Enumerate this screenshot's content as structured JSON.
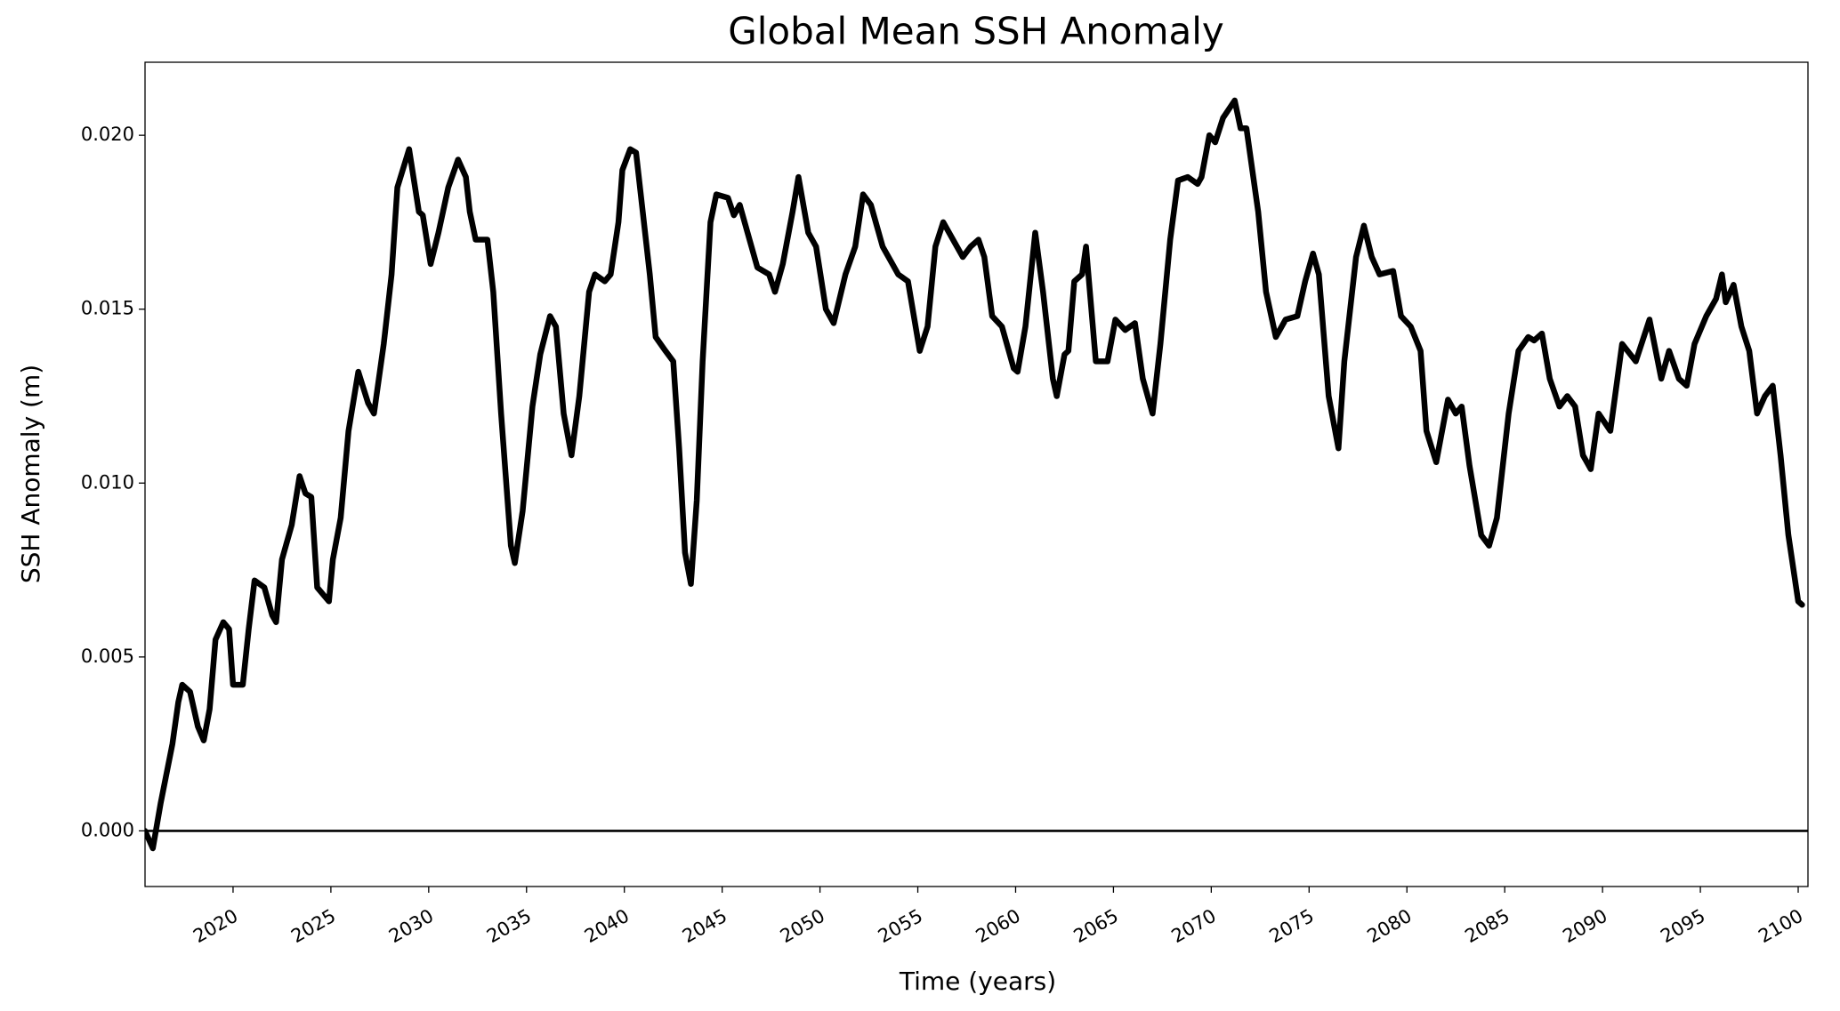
{
  "chart_data": {
    "type": "line",
    "title": "Global Mean SSH Anomaly",
    "xlabel": "Time (years)",
    "ylabel": "SSH Anomaly (m)",
    "hline": 0,
    "x": [
      2015.5,
      2015.9,
      2016.3,
      2016.9,
      2017.2,
      2017.4,
      2017.8,
      2018.2,
      2018.5,
      2018.8,
      2019.1,
      2019.5,
      2019.8,
      2020.0,
      2020.5,
      2020.8,
      2021.1,
      2021.6,
      2022.0,
      2022.2,
      2022.5,
      2023.0,
      2023.4,
      2023.7,
      2024.0,
      2024.3,
      2024.9,
      2025.1,
      2025.5,
      2025.9,
      2026.4,
      2026.9,
      2027.2,
      2027.7,
      2028.1,
      2028.4,
      2029.0,
      2029.5,
      2029.7,
      2030.1,
      2030.5,
      2031.0,
      2031.5,
      2031.9,
      2032.1,
      2032.4,
      2033.0,
      2033.3,
      2033.7,
      2034.2,
      2034.4,
      2034.8,
      2035.3,
      2035.7,
      2036.2,
      2036.5,
      2036.9,
      2037.3,
      2037.7,
      2038.2,
      2038.5,
      2039.0,
      2039.3,
      2039.7,
      2039.9,
      2040.3,
      2040.6,
      2040.9,
      2041.3,
      2041.6,
      2042.1,
      2042.5,
      2042.8,
      2043.1,
      2043.4,
      2043.7,
      2044.0,
      2044.4,
      2044.7,
      2045.3,
      2045.6,
      2045.9,
      2046.3,
      2046.8,
      2047.4,
      2047.7,
      2048.1,
      2048.6,
      2048.9,
      2049.4,
      2049.8,
      2050.3,
      2050.7,
      2051.3,
      2051.8,
      2052.2,
      2052.6,
      2053.2,
      2053.7,
      2054.0,
      2054.5,
      2055.1,
      2055.5,
      2055.9,
      2056.3,
      2056.8,
      2057.3,
      2057.7,
      2058.1,
      2058.4,
      2058.8,
      2059.3,
      2059.9,
      2060.1,
      2060.5,
      2061.0,
      2061.4,
      2061.9,
      2062.1,
      2062.5,
      2062.7,
      2063.0,
      2063.4,
      2063.6,
      2064.1,
      2064.7,
      2065.1,
      2065.6,
      2066.1,
      2066.5,
      2067.0,
      2067.4,
      2067.9,
      2068.3,
      2068.8,
      2069.3,
      2069.5,
      2069.9,
      2070.2,
      2070.6,
      2071.2,
      2071.5,
      2071.8,
      2072.1,
      2072.4,
      2072.8,
      2073.3,
      2073.8,
      2074.4,
      2074.8,
      2075.2,
      2075.5,
      2076.0,
      2076.5,
      2076.8,
      2077.4,
      2077.8,
      2078.2,
      2078.6,
      2079.3,
      2079.7,
      2080.2,
      2080.7,
      2081.0,
      2081.5,
      2082.1,
      2082.5,
      2082.8,
      2083.2,
      2083.8,
      2084.2,
      2084.6,
      2085.2,
      2085.7,
      2086.2,
      2086.5,
      2086.9,
      2087.3,
      2087.8,
      2088.2,
      2088.6,
      2089.0,
      2089.4,
      2089.8,
      2090.4,
      2091.0,
      2091.7,
      2092.4,
      2093.0,
      2093.4,
      2093.9,
      2094.3,
      2094.7,
      2095.3,
      2095.8,
      2096.1,
      2096.3,
      2096.7,
      2097.1,
      2097.5,
      2097.9,
      2098.3,
      2098.7,
      2099.1,
      2099.5,
      2100.0,
      2100.2
    ],
    "series": [
      {
        "name": "SSH",
        "color": "#000000",
        "values": [
          0.0,
          -0.0005,
          0.0008,
          0.0025,
          0.0037,
          0.0042,
          0.004,
          0.003,
          0.0026,
          0.0035,
          0.0055,
          0.006,
          0.0058,
          0.0042,
          0.0042,
          0.0058,
          0.0072,
          0.007,
          0.0062,
          0.006,
          0.0078,
          0.0088,
          0.0102,
          0.0097,
          0.0096,
          0.007,
          0.0066,
          0.0078,
          0.009,
          0.0115,
          0.0132,
          0.0123,
          0.012,
          0.014,
          0.016,
          0.0185,
          0.0196,
          0.0178,
          0.0177,
          0.0163,
          0.0172,
          0.0185,
          0.0193,
          0.0188,
          0.0178,
          0.017,
          0.017,
          0.0155,
          0.012,
          0.0082,
          0.0077,
          0.0092,
          0.0122,
          0.0137,
          0.0148,
          0.0145,
          0.012,
          0.0108,
          0.0125,
          0.0155,
          0.016,
          0.0158,
          0.016,
          0.0175,
          0.019,
          0.0196,
          0.0195,
          0.018,
          0.016,
          0.0142,
          0.0138,
          0.0135,
          0.011,
          0.008,
          0.0071,
          0.0095,
          0.0135,
          0.0175,
          0.0183,
          0.0182,
          0.0177,
          0.018,
          0.0172,
          0.0162,
          0.016,
          0.0155,
          0.0163,
          0.0178,
          0.0188,
          0.0172,
          0.0168,
          0.015,
          0.0146,
          0.016,
          0.0168,
          0.0183,
          0.018,
          0.0168,
          0.0163,
          0.016,
          0.0158,
          0.0138,
          0.0145,
          0.0168,
          0.0175,
          0.017,
          0.0165,
          0.0168,
          0.017,
          0.0165,
          0.0148,
          0.0145,
          0.0133,
          0.0132,
          0.0145,
          0.0172,
          0.0155,
          0.013,
          0.0125,
          0.0137,
          0.0138,
          0.0158,
          0.016,
          0.0168,
          0.0135,
          0.0135,
          0.0147,
          0.0144,
          0.0146,
          0.013,
          0.012,
          0.014,
          0.017,
          0.0187,
          0.0188,
          0.0186,
          0.0188,
          0.02,
          0.0198,
          0.0205,
          0.021,
          0.0202,
          0.0202,
          0.019,
          0.0178,
          0.0155,
          0.0142,
          0.0147,
          0.0148,
          0.0158,
          0.0166,
          0.016,
          0.0125,
          0.011,
          0.0135,
          0.0165,
          0.0174,
          0.0165,
          0.016,
          0.0161,
          0.0148,
          0.0145,
          0.0138,
          0.0115,
          0.0106,
          0.0124,
          0.012,
          0.0122,
          0.0105,
          0.0085,
          0.0082,
          0.009,
          0.012,
          0.0138,
          0.0142,
          0.0141,
          0.0143,
          0.013,
          0.0122,
          0.0125,
          0.0122,
          0.0108,
          0.0104,
          0.012,
          0.0115,
          0.014,
          0.0135,
          0.0147,
          0.013,
          0.0138,
          0.013,
          0.0128,
          0.014,
          0.0148,
          0.0153,
          0.016,
          0.0152,
          0.0157,
          0.0145,
          0.0138,
          0.012,
          0.0125,
          0.0128,
          0.0108,
          0.0085,
          0.0066,
          0.0065
        ]
      }
    ],
    "xlim": [
      2015.5,
      2100.5
    ],
    "ylim": [
      -0.0016,
      0.0221
    ],
    "xticks": [
      2020,
      2025,
      2030,
      2035,
      2040,
      2045,
      2050,
      2055,
      2060,
      2065,
      2070,
      2075,
      2080,
      2085,
      2090,
      2095,
      2100
    ],
    "yticks": [
      {
        "value": 0,
        "label": "0.000"
      },
      {
        "value": 0.005,
        "label": "0.005"
      },
      {
        "value": 0.01,
        "label": "0.010"
      },
      {
        "value": 0.015,
        "label": "0.015"
      },
      {
        "value": 0.02,
        "label": "0.020"
      }
    ],
    "grid": false
  }
}
